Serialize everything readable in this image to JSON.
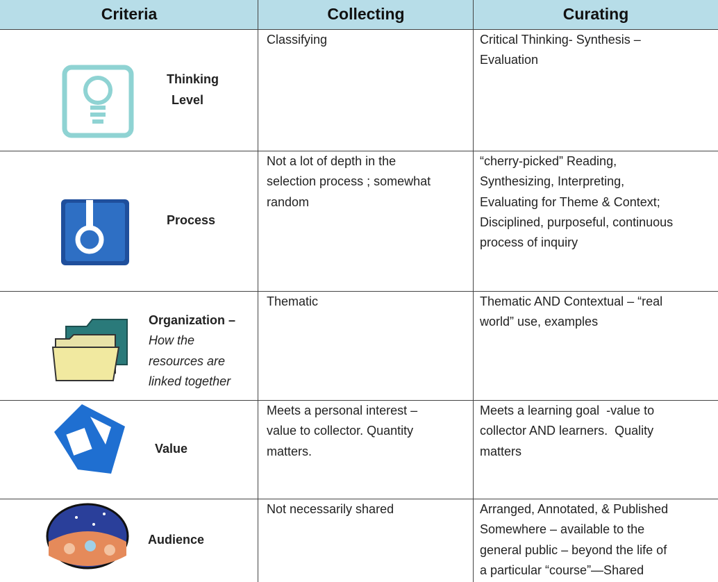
{
  "header": [
    "Criteria",
    "Collecting",
    "Curating"
  ],
  "rows": [
    {
      "criteria": [
        "Thinking",
        "Level"
      ],
      "collecting": [
        "Classifying"
      ],
      "curating": [
        "Critical Thinking- Synthesis –",
        "Evaluation"
      ]
    },
    {
      "criteria": [
        "Process"
      ],
      "collecting": [
        "Not a lot of depth in the",
        "selection process ; somewhat",
        "random"
      ],
      "curating": [
        "“cherry-picked” Reading,",
        "Synthesizing, Interpreting,",
        "Evaluating for Theme & Context;",
        "Disciplined, purposeful, continuous",
        "process of inquiry"
      ]
    },
    {
      "criteria": [
        "Organization –"
      ],
      "criteria_note": [
        "How the",
        "resources are",
        "linked together"
      ],
      "collecting": [
        "Thematic"
      ],
      "curating": [
        "Thematic AND Contextual – “real",
        "world” use, examples"
      ]
    },
    {
      "criteria": [
        "Value"
      ],
      "collecting": [
        "Meets a personal interest –",
        "value to collector. Quantity",
        "matters."
      ],
      "curating": [
        "Meets a learning goal  -value to",
        "collector AND learners.  Quality",
        "matters"
      ]
    },
    {
      "criteria": [
        "Audience"
      ],
      "collecting": [
        "Not necessarily shared"
      ],
      "curating": [
        "Arranged, Annotated, & Published",
        "Somewhere – available to the",
        "general public – beyond the life of",
        "a particular “course”—Shared"
      ]
    }
  ]
}
